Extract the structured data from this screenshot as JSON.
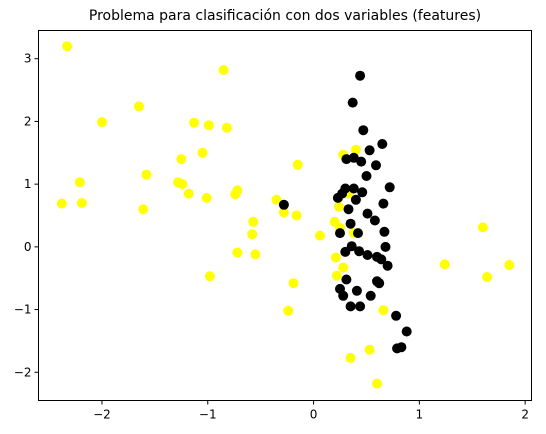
{
  "chart_data": {
    "type": "scatter",
    "title": "Problema para clasificación con dos variables (features)",
    "xlabel": "",
    "ylabel": "",
    "xlim": [
      -2.6,
      2.06
    ],
    "ylim": [
      -2.45,
      3.45
    ],
    "xticks": [
      -2,
      -1,
      0,
      1,
      2
    ],
    "yticks": [
      -2,
      -1,
      0,
      1,
      2,
      3
    ],
    "grid": false,
    "legend": "none",
    "series": [
      {
        "color": "#ffff00",
        "points": [
          [
            -2.33,
            3.2
          ],
          [
            -2.38,
            0.69
          ],
          [
            -2.21,
            1.03
          ],
          [
            -2.19,
            0.7
          ],
          [
            -2.0,
            1.99
          ],
          [
            -1.65,
            2.24
          ],
          [
            -1.61,
            0.6
          ],
          [
            -1.58,
            1.15
          ],
          [
            -1.28,
            1.03
          ],
          [
            -1.25,
            1.4
          ],
          [
            -1.24,
            1.0
          ],
          [
            -1.18,
            0.85
          ],
          [
            -1.13,
            1.98
          ],
          [
            -1.05,
            1.5
          ],
          [
            -1.01,
            0.78
          ],
          [
            -0.99,
            1.94
          ],
          [
            -0.98,
            -0.47
          ],
          [
            -0.85,
            2.82
          ],
          [
            -0.82,
            1.9
          ],
          [
            -0.74,
            0.84
          ],
          [
            -0.72,
            0.9
          ],
          [
            -0.72,
            -0.09
          ],
          [
            -0.58,
            0.2
          ],
          [
            -0.57,
            0.4
          ],
          [
            -0.55,
            -0.12
          ],
          [
            -0.35,
            0.75
          ],
          [
            -0.28,
            0.55
          ],
          [
            -0.24,
            -1.02
          ],
          [
            -0.19,
            -0.58
          ],
          [
            -0.16,
            0.5
          ],
          [
            -0.15,
            1.31
          ],
          [
            0.06,
            0.18
          ],
          [
            0.2,
            0.4
          ],
          [
            0.21,
            -0.17
          ],
          [
            0.22,
            -0.46
          ],
          [
            0.24,
            0.64
          ],
          [
            0.25,
            0.3
          ],
          [
            0.28,
            1.47
          ],
          [
            0.28,
            -0.33
          ],
          [
            0.33,
            0.85
          ],
          [
            0.35,
            -1.77
          ],
          [
            0.38,
            0.22
          ],
          [
            0.4,
            1.55
          ],
          [
            0.53,
            -1.64
          ],
          [
            0.6,
            -2.18
          ],
          [
            0.66,
            -1.01
          ],
          [
            1.24,
            -0.28
          ],
          [
            1.6,
            0.31
          ],
          [
            1.64,
            -0.48
          ],
          [
            1.85,
            -0.29
          ]
        ]
      },
      {
        "color": "#000000",
        "points": [
          [
            -0.28,
            0.67
          ],
          [
            0.23,
            0.78
          ],
          [
            0.25,
            -0.67
          ],
          [
            0.25,
            0.22
          ],
          [
            0.27,
            0.85
          ],
          [
            0.28,
            -0.78
          ],
          [
            0.3,
            0.93
          ],
          [
            0.3,
            -0.08
          ],
          [
            0.31,
            1.4
          ],
          [
            0.31,
            -0.52
          ],
          [
            0.33,
            0.6
          ],
          [
            0.35,
            0.37
          ],
          [
            0.35,
            -0.95
          ],
          [
            0.36,
            0.01
          ],
          [
            0.37,
            2.3
          ],
          [
            0.38,
            0.93
          ],
          [
            0.38,
            1.42
          ],
          [
            0.4,
            0.75
          ],
          [
            0.41,
            -0.7
          ],
          [
            0.42,
            0.22
          ],
          [
            0.43,
            -0.07
          ],
          [
            0.44,
            2.73
          ],
          [
            0.44,
            -0.95
          ],
          [
            0.45,
            1.36
          ],
          [
            0.46,
            0.87
          ],
          [
            0.47,
            1.86
          ],
          [
            0.5,
            1.13
          ],
          [
            0.51,
            0.53
          ],
          [
            0.51,
            -0.13
          ],
          [
            0.53,
            1.54
          ],
          [
            0.54,
            -0.78
          ],
          [
            0.58,
            0.42
          ],
          [
            0.59,
            1.3
          ],
          [
            0.6,
            -0.55
          ],
          [
            0.6,
            -0.16
          ],
          [
            0.62,
            -0.58
          ],
          [
            0.64,
            -0.2
          ],
          [
            0.65,
            1.64
          ],
          [
            0.66,
            0.69
          ],
          [
            0.67,
            0.24
          ],
          [
            0.68,
            0.0
          ],
          [
            0.7,
            -0.3
          ],
          [
            0.72,
            0.95
          ],
          [
            0.78,
            -1.1
          ],
          [
            0.79,
            -1.62
          ],
          [
            0.83,
            -1.6
          ],
          [
            0.88,
            -1.35
          ]
        ]
      }
    ]
  }
}
